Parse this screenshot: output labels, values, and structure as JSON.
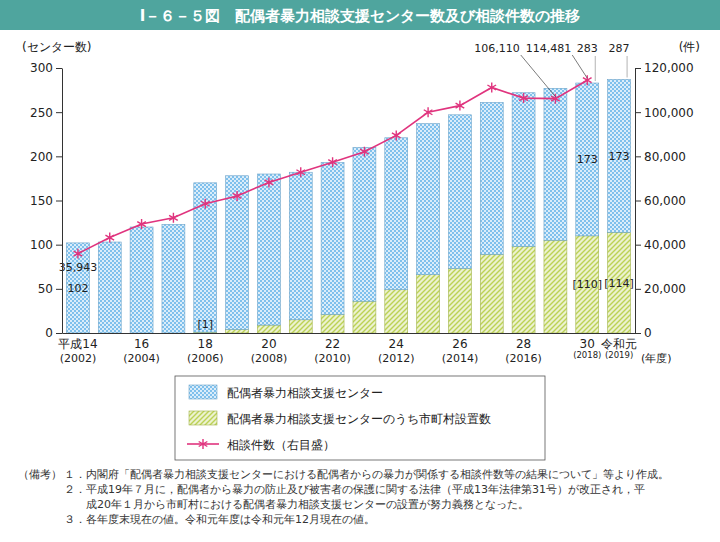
{
  "chart_data": {
    "type": "bar",
    "title": "Ⅰ－６－５図　配偶者暴力相談支援センター数及び相談件数の推移",
    "y_label": "(センター数)",
    "y2_label": "(件)",
    "x_label": "(年度)",
    "categories": [
      "平成14\n(2002)",
      null,
      "16\n(2004)",
      null,
      "18\n(2006)",
      null,
      "20\n(2008)",
      null,
      "22\n(2010)",
      null,
      "24\n(2012)",
      null,
      "26\n(2014)",
      null,
      "28\n(2016)",
      null,
      "30\n(2018)",
      "令和元\n(2019)"
    ],
    "stacked": true,
    "grid": false,
    "legend": "bottom",
    "data_labels": true,
    "ylim": [
      0,
      300
    ],
    "yticks": [
      0,
      50,
      100,
      150,
      200,
      250,
      300
    ],
    "y2lim": [
      0,
      120000
    ],
    "y2ticks": [
      0,
      {
        "value": 20000,
        "label": "20,000"
      },
      {
        "value": 40000,
        "label": "40,000"
      },
      {
        "value": 60000,
        "label": "60,000"
      },
      {
        "value": 80000,
        "label": "80,000"
      },
      {
        "value": 100000,
        "label": "100,000"
      },
      {
        "value": 120000,
        "label": "120,000"
      }
    ],
    "series": [
      {
        "name": "配偶者暴力相談支援センター",
        "type": "bar",
        "color": "#7fc0ec",
        "values": [
          102,
          103,
          120,
          123,
          169,
          174,
          171,
          167,
          172,
          174,
          172,
          171,
          174,
          172,
          174,
          172,
          173,
          173
        ],
        "value_labels": [
          "102",
          null,
          null,
          null,
          null,
          null,
          null,
          null,
          null,
          null,
          null,
          null,
          null,
          null,
          null,
          null,
          "173",
          "173"
        ]
      },
      {
        "name": "配偶者暴力相談支援センターのうち市町村設置数",
        "type": "bar",
        "color": "#bcd255",
        "values": [
          0,
          0,
          0,
          0,
          1,
          4,
          9,
          15,
          21,
          36,
          49,
          66,
          73,
          89,
          98,
          105,
          110,
          114
        ],
        "value_labels": [
          null,
          null,
          null,
          null,
          "[1]",
          null,
          null,
          null,
          null,
          null,
          null,
          null,
          null,
          null,
          null,
          null,
          "[110]",
          "[114]"
        ]
      },
      {
        "name": "相談件数（右目盛）",
        "type": "line",
        "axis": "y2",
        "color": "#e0347e",
        "marker": "star",
        "line_style": "solid",
        "values": [
          35943,
          43225,
          49329,
          52145,
          58528,
          62078,
          68196,
          72792,
          77334,
          82099,
          89490,
          99961,
          102963,
          111172,
          106367,
          106110,
          114481,
          null
        ],
        "value_labels": [
          "35,943",
          null,
          null,
          null,
          null,
          null,
          null,
          null,
          null,
          null,
          null,
          null,
          null,
          null,
          null,
          "106,110",
          "114,481",
          null
        ]
      }
    ],
    "annotations": [
      {
        "text": "283",
        "index": 16,
        "value": 283
      },
      {
        "text": "287",
        "index": 17,
        "value": 287
      }
    ],
    "notes_label": "（備考）",
    "notes": [
      [
        "１．内閣府「配偶者暴力相談支援センターにおける配偶者からの暴力が関係する相談件数等の結果について」等より作成。"
      ],
      [
        "２．平成19年７月に，配偶者から暴力の防止及び被害者の保護に関する法律（平成13年法律第31号）が改正され，平",
        "成20年１月から市町村における配偶者暴力相談支援センターの設置が努力義務となった。"
      ],
      [
        "３．各年度末現在の値。令和元年度は令和元年12月現在の値。"
      ]
    ]
  }
}
